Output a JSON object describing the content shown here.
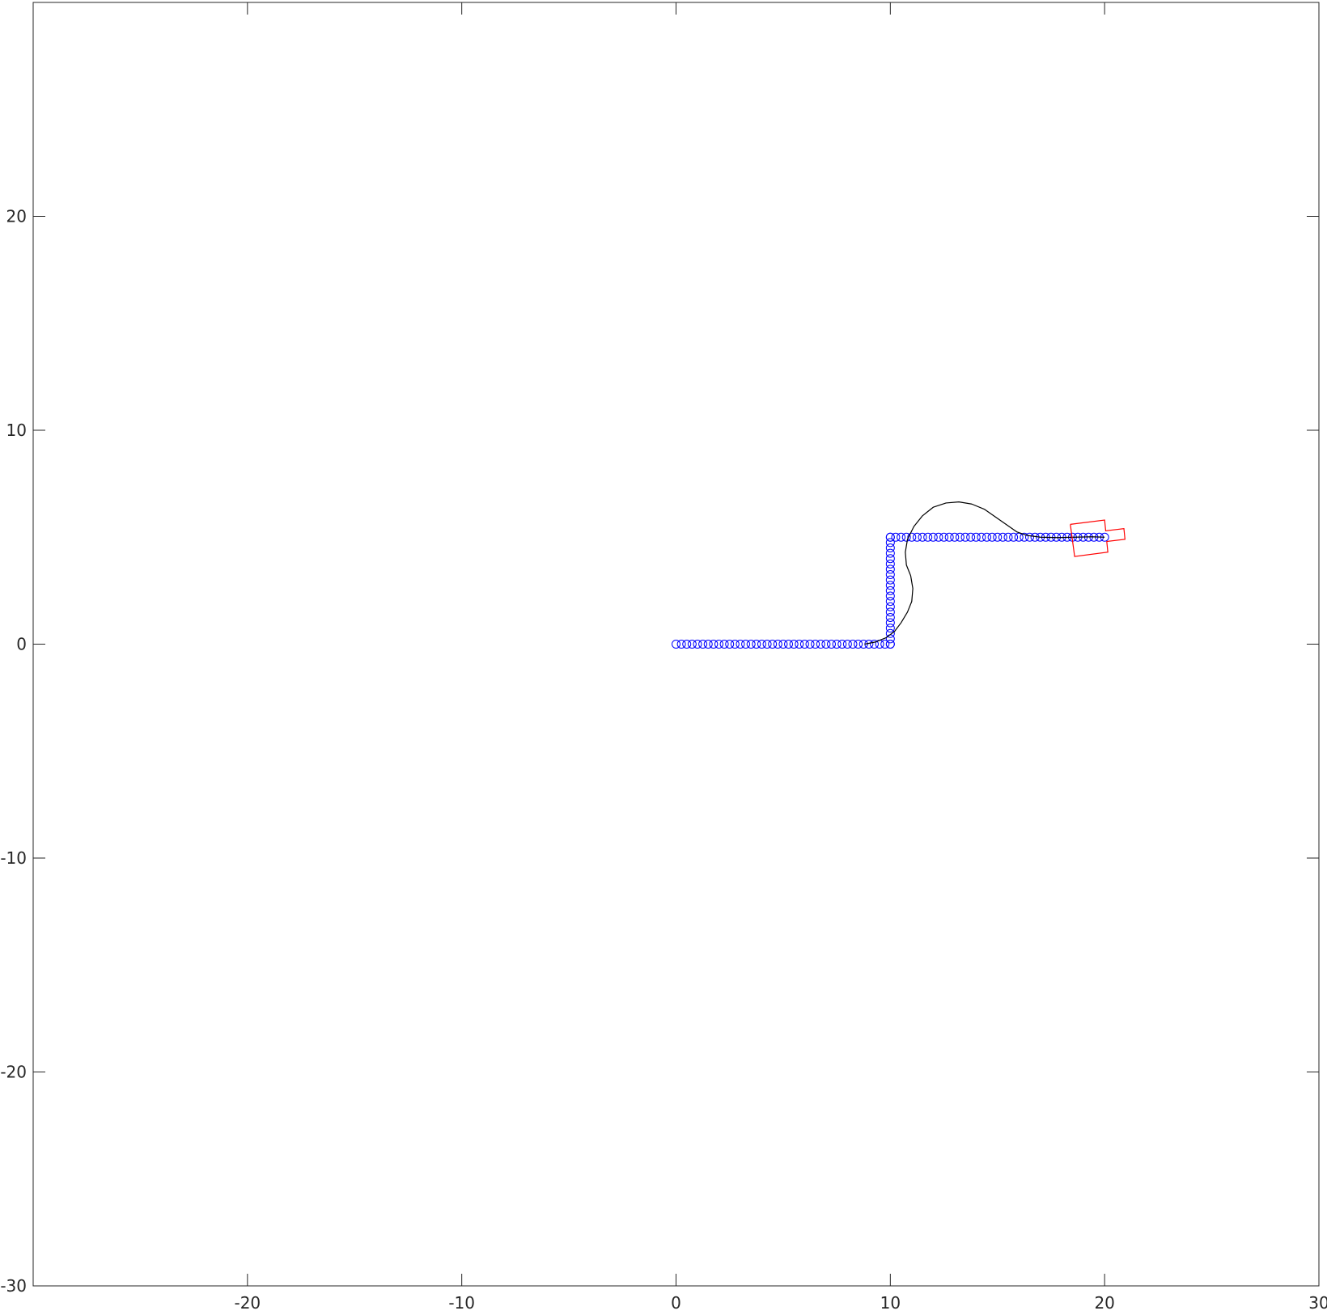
{
  "chart_data": {
    "type": "scatter",
    "title": "",
    "xlabel": "",
    "ylabel": "",
    "xlim": [
      -30,
      30
    ],
    "ylim": [
      -30,
      30
    ],
    "x_ticks": [
      -20,
      -10,
      0,
      10,
      20,
      30
    ],
    "x_tick_labels": [
      "-20",
      "-10",
      "0",
      "10",
      "20",
      "30"
    ],
    "y_ticks": [
      -30,
      -20,
      -10,
      0,
      10,
      20
    ],
    "y_tick_labels": [
      "-30",
      "-20",
      "-10",
      "0",
      "10",
      "20"
    ],
    "grid": false,
    "box": true,
    "series": [
      {
        "kind": "markers",
        "marker": "circle",
        "color": "#0000ff",
        "segments": [
          {
            "from": [
              0,
              0
            ],
            "to": [
              10,
              0
            ],
            "step": 0.25
          },
          {
            "from": [
              10,
              0
            ],
            "to": [
              10,
              5
            ],
            "step": 0.25
          },
          {
            "from": [
              10,
              5
            ],
            "to": [
              20,
              5
            ],
            "step": 0.25
          }
        ]
      },
      {
        "kind": "line",
        "color": "#000000",
        "x": [
          8.8,
          9.3,
          9.8,
          10.2,
          10.5,
          10.8,
          11.0,
          11.05,
          10.95,
          10.75,
          10.7,
          10.8,
          11.1,
          11.5,
          12.0,
          12.6,
          13.2,
          13.8,
          14.4,
          14.9,
          15.4,
          15.9,
          16.4,
          17.0,
          17.8,
          18.6,
          19.4,
          20.0
        ],
        "y": [
          0.0,
          0.1,
          0.3,
          0.6,
          1.0,
          1.5,
          2.0,
          2.6,
          3.2,
          3.7,
          4.3,
          4.9,
          5.5,
          6.0,
          6.4,
          6.6,
          6.65,
          6.55,
          6.3,
          5.95,
          5.6,
          5.25,
          5.08,
          5.0,
          4.98,
          5.0,
          5.02,
          5.0
        ]
      },
      {
        "kind": "polygon",
        "color": "#ff0000",
        "x": [
          18.4,
          20.0,
          20.05,
          20.9,
          20.95,
          20.1,
          20.15,
          18.6,
          18.4
        ],
        "y": [
          5.6,
          5.8,
          5.3,
          5.4,
          4.9,
          4.8,
          4.3,
          4.1,
          5.6
        ]
      }
    ]
  }
}
